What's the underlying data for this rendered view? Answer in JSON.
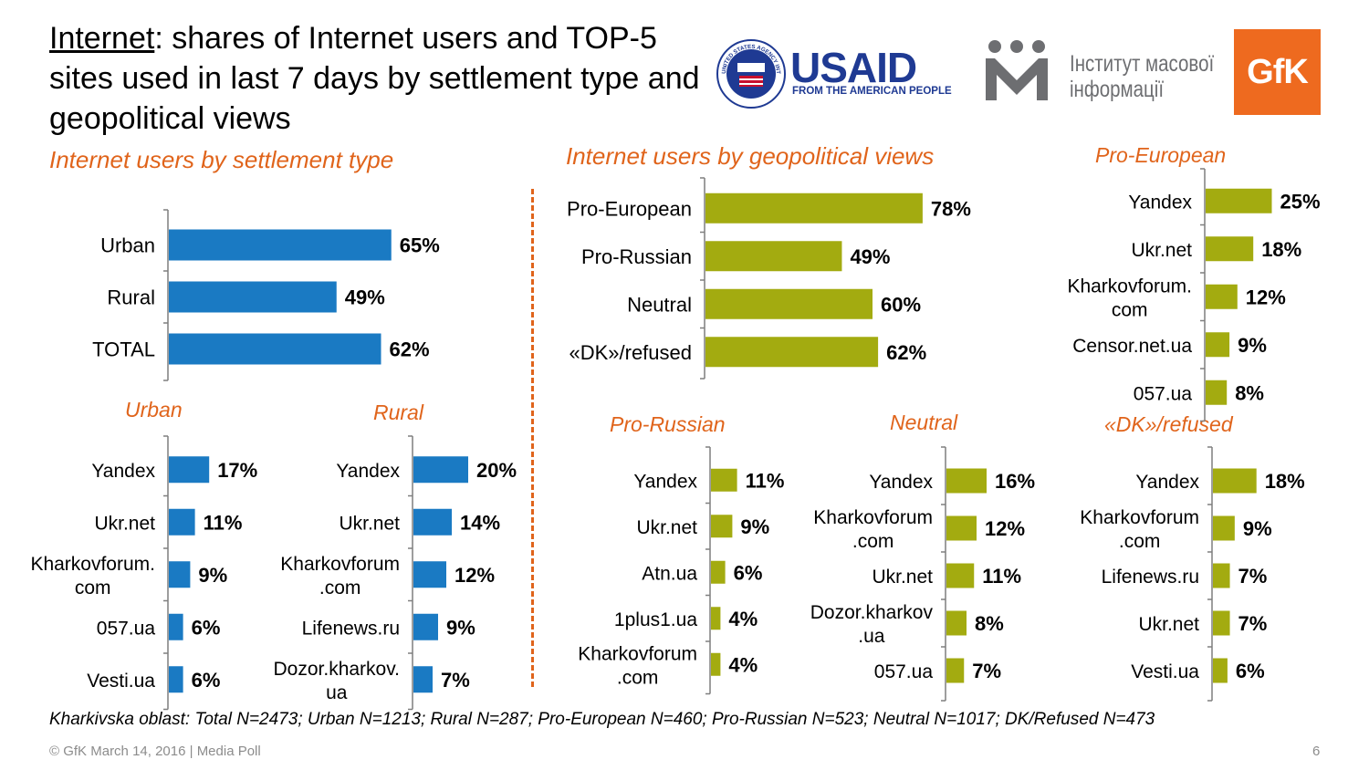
{
  "title": {
    "underlined": "Internet",
    "rest": ": shares of Internet users and TOP-5 sites used in last 7 days by settlement type and geopolitical views"
  },
  "logos": {
    "usaid_seal": "UNITED STATES AGENCY INTERNATIONAL DEVELOPMENT",
    "usaid": "USAID",
    "usaid_tagline": "FROM THE AMERICAN PEOPLE",
    "imi_line1": "Інститут масової",
    "imi_line2": "інформації",
    "gfk": "GfK"
  },
  "colors": {
    "blue": "#1a7ac3",
    "olive": "#a3ab10",
    "orange": "#e0641b",
    "axis": "#7f7f7f"
  },
  "chart_data": [
    {
      "id": "settlement",
      "type": "bar",
      "orientation": "horizontal",
      "title": "Internet users by settlement type",
      "categories": [
        "Urban",
        "Rural",
        "TOTAL"
      ],
      "values": [
        65,
        49,
        62
      ],
      "labels": [
        "65%",
        "49%",
        "62%"
      ],
      "unit": "%"
    },
    {
      "id": "urban",
      "type": "bar",
      "orientation": "horizontal",
      "title": "Urban",
      "categories": [
        "Yandex",
        "Ukr.net",
        "Kharkovforum.\ncom",
        "057.ua",
        "Vesti.ua"
      ],
      "values": [
        17,
        11,
        9,
        6,
        6
      ],
      "labels": [
        "17%",
        "11%",
        "9%",
        "6%",
        "6%"
      ],
      "unit": "%"
    },
    {
      "id": "rural",
      "type": "bar",
      "orientation": "horizontal",
      "title": "Rural",
      "categories": [
        "Yandex",
        "Ukr.net",
        "Kharkovforum\n.com",
        "Lifenews.ru",
        "Dozor.kharkov.\nua"
      ],
      "values": [
        20,
        14,
        12,
        9,
        7
      ],
      "labels": [
        "20%",
        "14%",
        "12%",
        "9%",
        "7%"
      ],
      "unit": "%"
    },
    {
      "id": "geopolitical",
      "type": "bar",
      "orientation": "horizontal",
      "title": "Internet users by geopolitical views",
      "categories": [
        "Pro-European",
        "Pro-Russian",
        "Neutral",
        "«DK»/refused"
      ],
      "values": [
        78,
        49,
        60,
        62
      ],
      "labels": [
        "78%",
        "49%",
        "60%",
        "62%"
      ],
      "unit": "%"
    },
    {
      "id": "pro_european",
      "type": "bar",
      "orientation": "horizontal",
      "title": "Pro-European",
      "categories": [
        "Yandex",
        "Ukr.net",
        "Kharkovforum.\ncom",
        "Censor.net.ua",
        "057.ua"
      ],
      "values": [
        25,
        18,
        12,
        9,
        8
      ],
      "labels": [
        "25%",
        "18%",
        "12%",
        "9%",
        "8%"
      ],
      "unit": "%"
    },
    {
      "id": "pro_russian",
      "type": "bar",
      "orientation": "horizontal",
      "title": "Pro-Russian",
      "categories": [
        "Yandex",
        "Ukr.net",
        "Atn.ua",
        "1plus1.ua",
        "Kharkovforum\n.com"
      ],
      "values": [
        11,
        9,
        6,
        4,
        4
      ],
      "labels": [
        "11%",
        "9%",
        "6%",
        "4%",
        "4%"
      ],
      "unit": "%"
    },
    {
      "id": "neutral",
      "type": "bar",
      "orientation": "horizontal",
      "title": "Neutral",
      "categories": [
        "Yandex",
        "Kharkovforum\n.com",
        "Ukr.net",
        "Dozor.kharkov\n.ua",
        "057.ua"
      ],
      "values": [
        16,
        12,
        11,
        8,
        7
      ],
      "labels": [
        "16%",
        "12%",
        "11%",
        "8%",
        "7%"
      ],
      "unit": "%"
    },
    {
      "id": "dk_refused",
      "type": "bar",
      "orientation": "horizontal",
      "title": "«DK»/refused",
      "categories": [
        "Yandex",
        "Kharkovforum\n.com",
        "Lifenews.ru",
        "Ukr.net",
        "Vesti.ua"
      ],
      "values": [
        18,
        9,
        7,
        7,
        6
      ],
      "labels": [
        "18%",
        "9%",
        "7%",
        "7%",
        "6%"
      ],
      "unit": "%"
    }
  ],
  "note": "Kharkivska oblast: Total N=2473; Urban N=1213; Rural N=287; Pro-European N=460; Pro-Russian N=523; Neutral N=1017; DK/Refused N=473",
  "footer": "© GfK March 14, 2016 | Media Poll",
  "page_number": "6"
}
